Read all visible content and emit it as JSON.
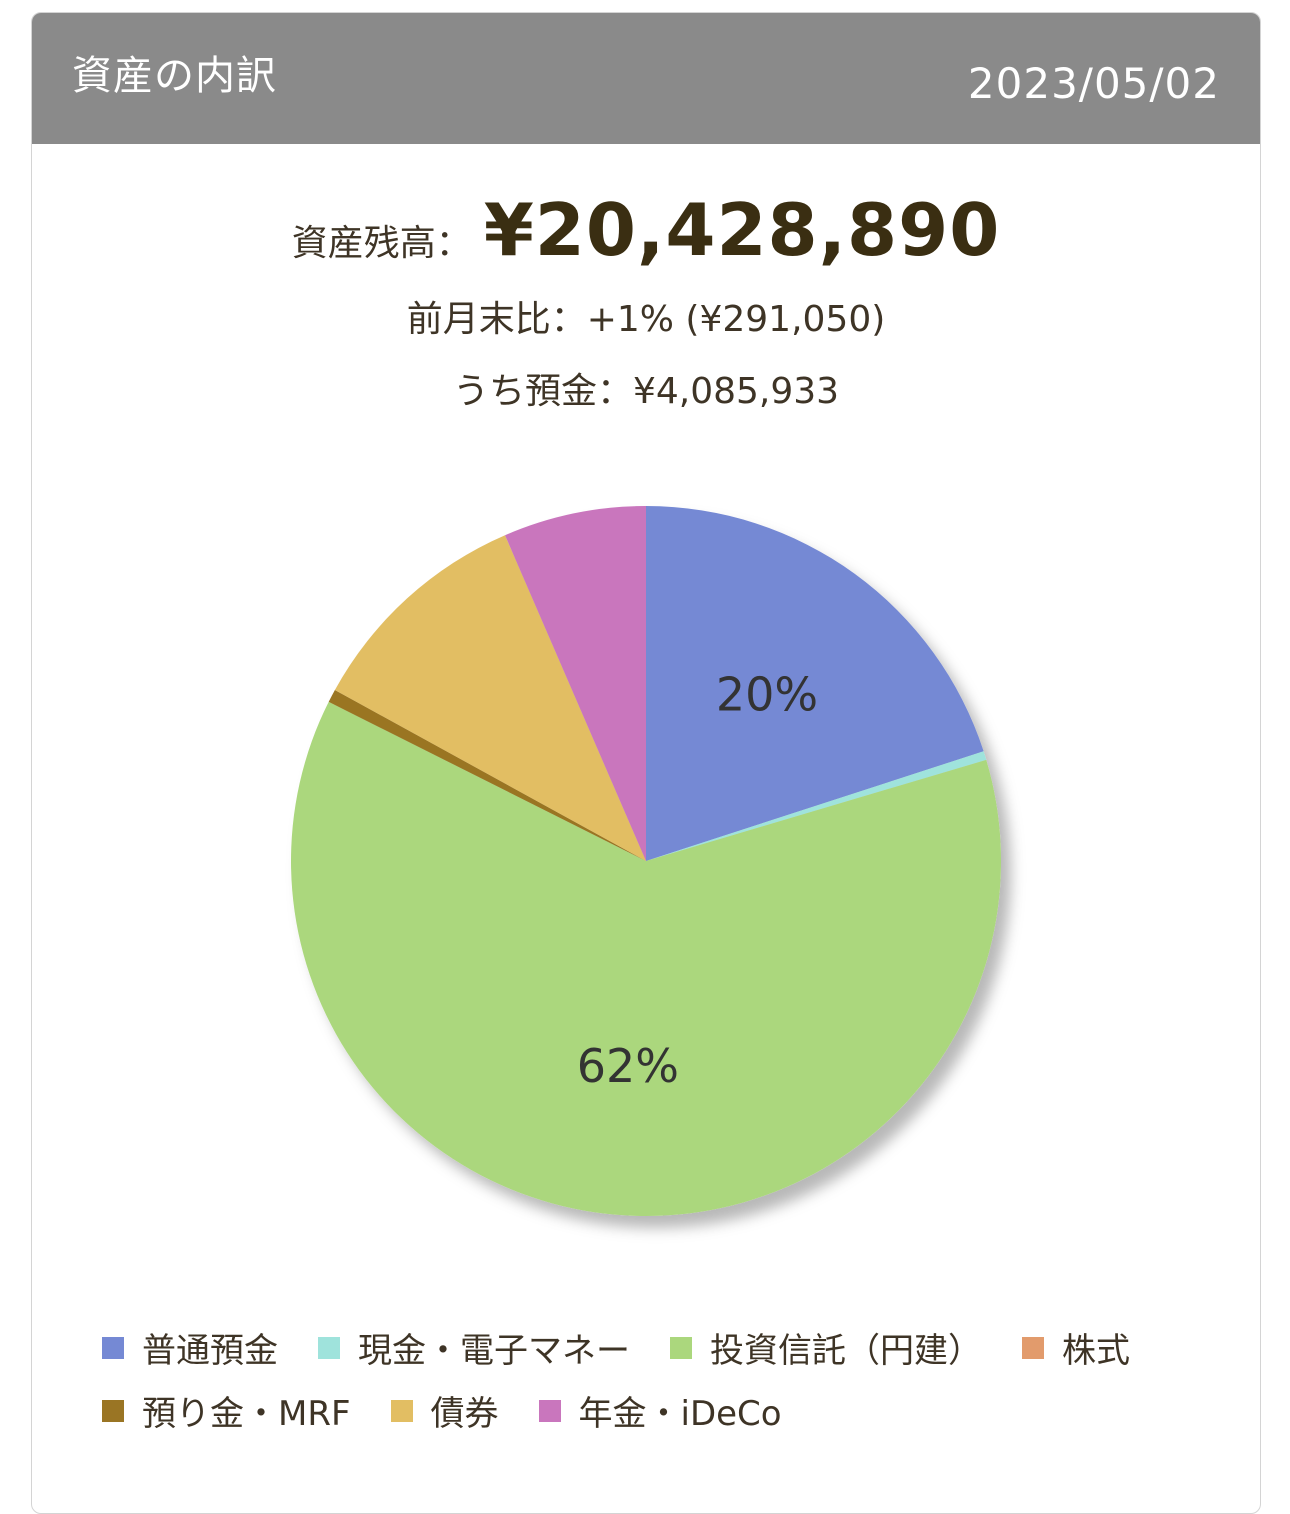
{
  "header": {
    "title": "資産の内訳",
    "date": "2023/05/02"
  },
  "summary": {
    "total_label": "資産残高：",
    "total_value": "¥20,428,890",
    "change_line": "前月末比：+1% (¥291,050)",
    "deposit_line": "うち預金：¥4,085,933"
  },
  "chart_data": {
    "type": "pie",
    "start_angle_deg": 0,
    "direction": "clockwise",
    "slices": [
      {
        "label": "普通預金",
        "value": 20,
        "color": "#7589d4",
        "shown_label": "20%"
      },
      {
        "label": "現金・電子マネー",
        "value": 0.4,
        "color": "#9fe3dc",
        "shown_label": ""
      },
      {
        "label": "投資信託（円建）",
        "value": 62,
        "color": "#abd77d",
        "shown_label": "62%"
      },
      {
        "label": "株式",
        "value": 0,
        "color": "#e29b6c",
        "shown_label": ""
      },
      {
        "label": "預り金・MRF",
        "value": 0.6,
        "color": "#9a7524",
        "shown_label": ""
      },
      {
        "label": "債券",
        "value": 10.5,
        "color": "#e2be63",
        "shown_label": ""
      },
      {
        "label": "年金・iDeCo",
        "value": 6.5,
        "color": "#c976bd",
        "shown_label": ""
      }
    ]
  }
}
